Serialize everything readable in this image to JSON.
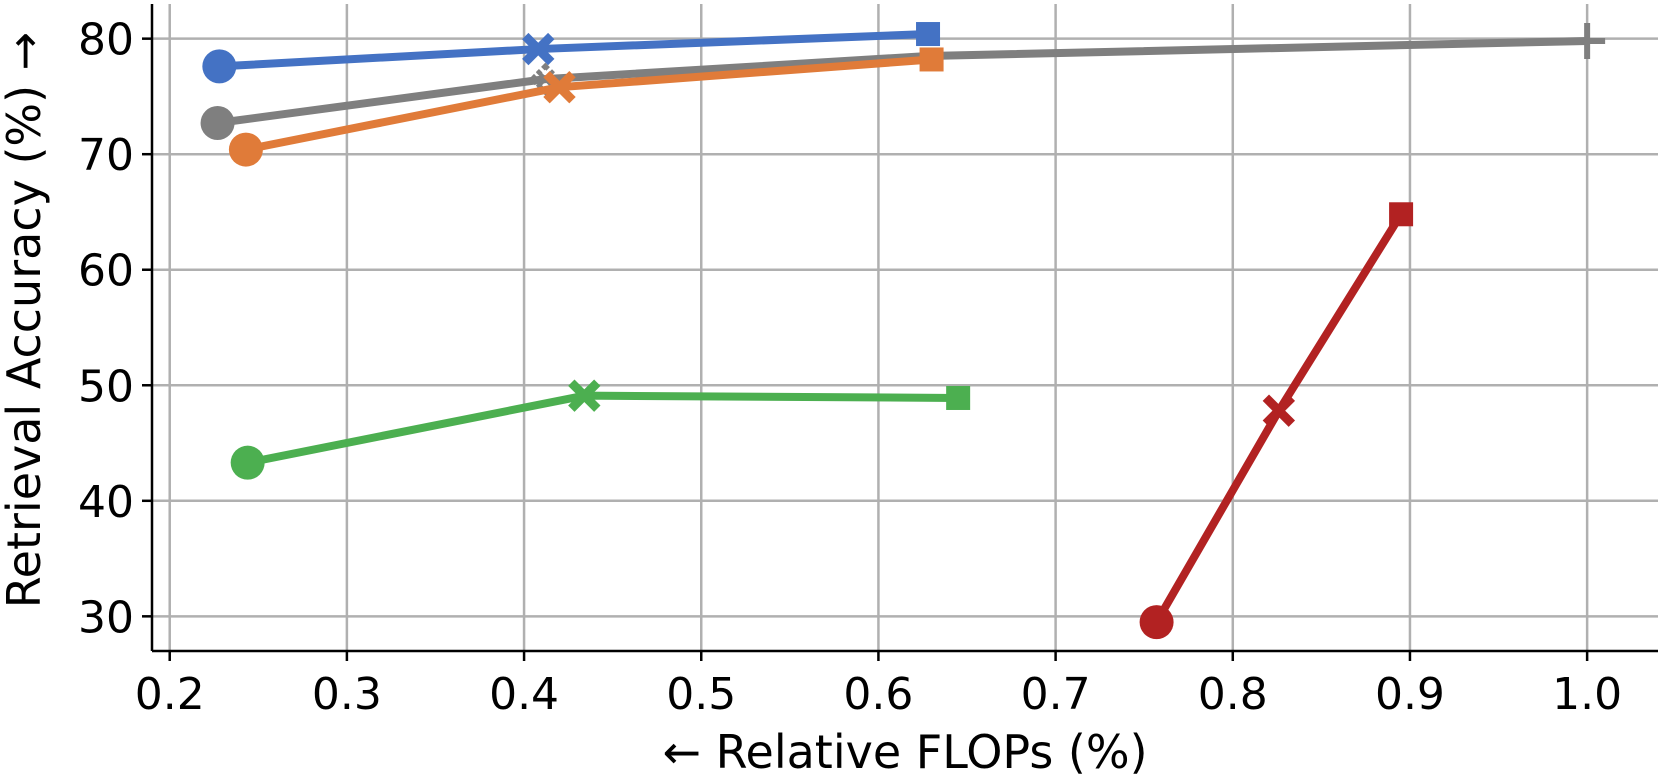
{
  "chart_data": {
    "type": "line",
    "title": "",
    "xlabel": "← Relative FLOPs (%)",
    "ylabel": "Retrieval Accuracy (%) →",
    "xlim": [
      0.19,
      1.04
    ],
    "ylim": [
      27,
      83
    ],
    "xticks": [
      "0.2",
      "0.3",
      "0.4",
      "0.5",
      "0.6",
      "0.7",
      "0.8",
      "0.9",
      "1.0"
    ],
    "yticks": [
      "30",
      "40",
      "50",
      "60",
      "70",
      "80"
    ],
    "xtick_values": [
      0.2,
      0.3,
      0.4,
      0.5,
      0.6,
      0.7,
      0.8,
      0.9,
      1.0
    ],
    "ytick_values": [
      30,
      40,
      50,
      60,
      70,
      80
    ],
    "grid": true,
    "legend": "none",
    "series": [
      {
        "name": "blue",
        "color": "#4472c4",
        "points": [
          {
            "x": 0.228,
            "y": 77.6,
            "marker": "circle"
          },
          {
            "x": 0.408,
            "y": 79.1,
            "marker": "x"
          },
          {
            "x": 0.628,
            "y": 80.4,
            "marker": "square"
          }
        ]
      },
      {
        "name": "gray",
        "color": "#7f7f7f",
        "points": [
          {
            "x": 0.227,
            "y": 72.7,
            "marker": "circle"
          },
          {
            "x": 0.412,
            "y": 76.5,
            "marker": "diamond-x"
          },
          {
            "x": 0.628,
            "y": 78.5,
            "marker": "none"
          },
          {
            "x": 1.0,
            "y": 79.8,
            "marker": "plus"
          }
        ]
      },
      {
        "name": "orange",
        "color": "#e07b39",
        "points": [
          {
            "x": 0.243,
            "y": 70.4,
            "marker": "circle"
          },
          {
            "x": 0.42,
            "y": 75.8,
            "marker": "x"
          },
          {
            "x": 0.63,
            "y": 78.2,
            "marker": "square"
          }
        ]
      },
      {
        "name": "green",
        "color": "#4caf50",
        "points": [
          {
            "x": 0.244,
            "y": 43.3,
            "marker": "circle"
          },
          {
            "x": 0.434,
            "y": 49.1,
            "marker": "x"
          },
          {
            "x": 0.645,
            "y": 48.9,
            "marker": "square"
          }
        ]
      },
      {
        "name": "red",
        "color": "#b22222",
        "points": [
          {
            "x": 0.757,
            "y": 29.5,
            "marker": "circle"
          },
          {
            "x": 0.826,
            "y": 47.8,
            "marker": "x"
          },
          {
            "x": 0.895,
            "y": 64.8,
            "marker": "square"
          }
        ]
      }
    ]
  }
}
